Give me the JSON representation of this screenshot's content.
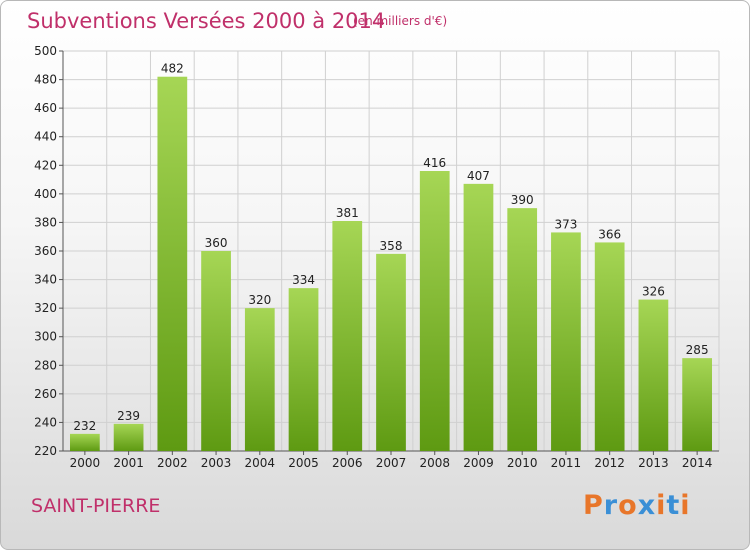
{
  "header": {
    "title": "Subventions Versées 2000 à 2014",
    "unit": "(en milliers d'€)"
  },
  "footer": {
    "location": "SAINT-PIERRE",
    "logo": "Proxiti"
  },
  "colors": {
    "title": "#c0306a",
    "bar_top": "#a6d655",
    "bar_bottom": "#5e9a12",
    "grid": "#d0d0d0",
    "logo_letters": [
      "#e8762a",
      "#3a8fd6",
      "#e8762a",
      "#3a8fd6",
      "#e8762a",
      "#3a8fd6",
      "#e8762a"
    ]
  },
  "chart_data": {
    "type": "bar",
    "title": "Subventions Versées 2000 à 2014",
    "xlabel": "",
    "ylabel": "",
    "categories": [
      "2000",
      "2001",
      "2002",
      "2003",
      "2004",
      "2005",
      "2006",
      "2007",
      "2008",
      "2009",
      "2010",
      "2011",
      "2012",
      "2013",
      "2014"
    ],
    "values": [
      232,
      239,
      482,
      360,
      320,
      334,
      381,
      358,
      416,
      407,
      390,
      373,
      366,
      326,
      285
    ],
    "ylim": [
      220,
      500
    ],
    "yticks": [
      220,
      240,
      260,
      280,
      300,
      320,
      340,
      360,
      380,
      400,
      420,
      440,
      460,
      480,
      500
    ],
    "grid": true,
    "data_labels": true
  }
}
